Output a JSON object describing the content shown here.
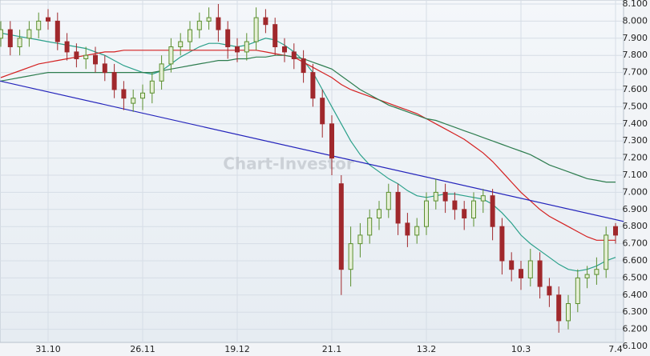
{
  "chart_data": {
    "type": "candlestick",
    "watermark": "Chart-Investor",
    "categories": [
      null,
      null,
      null,
      null,
      null,
      "31.10",
      null,
      null,
      null,
      null,
      null,
      null,
      null,
      null,
      null,
      "26.11",
      null,
      null,
      null,
      null,
      null,
      null,
      null,
      null,
      null,
      "19.12",
      null,
      null,
      null,
      null,
      null,
      null,
      null,
      null,
      null,
      "21.1",
      null,
      null,
      null,
      null,
      null,
      null,
      null,
      null,
      null,
      "13.2",
      null,
      null,
      null,
      null,
      null,
      null,
      null,
      null,
      null,
      "10.3",
      null,
      null,
      null,
      null,
      null,
      null,
      null,
      null,
      null,
      "7.4"
    ],
    "open": [
      7.9,
      7.95,
      7.85,
      7.9,
      7.95,
      8.02,
      8.0,
      7.88,
      7.82,
      7.78,
      7.8,
      7.75,
      7.7,
      7.6,
      7.52,
      7.55,
      7.58,
      7.65,
      7.75,
      7.85,
      7.88,
      7.95,
      8.0,
      8.02,
      7.95,
      7.85,
      7.82,
      7.88,
      8.02,
      7.98,
      7.85,
      7.82,
      7.78,
      7.7,
      7.55,
      7.4,
      7.05,
      6.55,
      6.7,
      6.75,
      6.85,
      6.9,
      7.0,
      6.82,
      6.75,
      6.8,
      6.95,
      7.0,
      6.95,
      6.9,
      6.85,
      6.95,
      6.98,
      6.8,
      6.6,
      6.55,
      6.5,
      6.6,
      6.45,
      6.4,
      6.25,
      6.35,
      6.5,
      6.52,
      6.55,
      6.8
    ],
    "high": [
      8.0,
      8.0,
      7.95,
      8.0,
      8.05,
      8.07,
      8.05,
      7.93,
      7.87,
      7.85,
      7.85,
      7.8,
      7.75,
      7.65,
      7.6,
      7.63,
      7.7,
      7.8,
      7.9,
      7.93,
      8.0,
      8.05,
      8.08,
      8.1,
      8.0,
      7.9,
      7.93,
      8.08,
      8.07,
      8.02,
      7.9,
      7.87,
      7.83,
      7.75,
      7.6,
      7.45,
      7.1,
      6.8,
      6.82,
      6.9,
      6.95,
      7.05,
      7.05,
      6.88,
      6.85,
      7.0,
      7.08,
      7.05,
      7.0,
      6.95,
      7.0,
      7.02,
      7.02,
      6.85,
      6.65,
      6.6,
      6.67,
      6.65,
      6.5,
      6.45,
      6.4,
      6.55,
      6.57,
      6.62,
      6.8,
      6.82
    ],
    "low": [
      7.85,
      7.8,
      7.8,
      7.85,
      7.9,
      7.95,
      7.83,
      7.77,
      7.73,
      7.72,
      7.7,
      7.65,
      7.55,
      7.48,
      7.47,
      7.48,
      7.52,
      7.6,
      7.7,
      7.8,
      7.83,
      7.9,
      7.95,
      7.88,
      7.78,
      7.76,
      7.77,
      7.83,
      7.93,
      7.8,
      7.76,
      7.72,
      7.64,
      7.5,
      7.32,
      7.1,
      6.4,
      6.45,
      6.62,
      6.7,
      6.78,
      6.85,
      6.75,
      6.68,
      6.7,
      6.75,
      6.9,
      6.88,
      6.84,
      6.78,
      6.8,
      6.88,
      6.72,
      6.52,
      6.48,
      6.43,
      6.45,
      6.38,
      6.33,
      6.18,
      6.2,
      6.3,
      6.44,
      6.46,
      6.5,
      6.7
    ],
    "close": [
      7.95,
      7.85,
      7.9,
      7.95,
      8.0,
      8.0,
      7.88,
      7.82,
      7.78,
      7.8,
      7.75,
      7.7,
      7.6,
      7.55,
      7.55,
      7.58,
      7.65,
      7.75,
      7.85,
      7.88,
      7.95,
      8.0,
      8.02,
      7.95,
      7.85,
      7.82,
      7.88,
      8.02,
      7.98,
      7.85,
      7.82,
      7.78,
      7.7,
      7.55,
      7.4,
      7.2,
      6.55,
      6.7,
      6.75,
      6.85,
      6.9,
      7.0,
      6.82,
      6.75,
      6.8,
      6.95,
      7.0,
      6.95,
      6.9,
      6.85,
      6.95,
      6.98,
      6.8,
      6.6,
      6.55,
      6.5,
      6.6,
      6.45,
      6.4,
      6.25,
      6.35,
      6.5,
      6.52,
      6.55,
      6.75,
      6.75
    ],
    "up_color": "#5a8f2e",
    "up_fill": "#e6efd6",
    "down_color": "#a0282c",
    "lines": [
      {
        "color": "#2aa08a",
        "values": [
          7.93,
          7.92,
          7.91,
          7.9,
          7.89,
          7.88,
          7.87,
          7.86,
          7.85,
          7.84,
          7.82,
          7.8,
          7.77,
          7.74,
          7.72,
          7.7,
          7.69,
          7.71,
          7.75,
          7.79,
          7.82,
          7.85,
          7.87,
          7.87,
          7.86,
          7.85,
          7.86,
          7.88,
          7.9,
          7.89,
          7.86,
          7.82,
          7.77,
          7.7,
          7.6,
          7.5,
          7.4,
          7.3,
          7.22,
          7.16,
          7.12,
          7.08,
          7.05,
          7.01,
          6.98,
          6.97,
          6.98,
          6.99,
          6.99,
          6.98,
          6.97,
          6.96,
          6.93,
          6.88,
          6.82,
          6.75,
          6.7,
          6.66,
          6.62,
          6.58,
          6.55,
          6.54,
          6.55,
          6.57,
          6.6,
          6.62
        ]
      },
      {
        "color": "#d42020",
        "values": [
          7.67,
          7.69,
          7.71,
          7.73,
          7.75,
          7.76,
          7.77,
          7.78,
          7.79,
          7.8,
          7.81,
          7.82,
          7.82,
          7.83,
          7.83,
          7.83,
          7.83,
          7.83,
          7.83,
          7.83,
          7.83,
          7.83,
          7.83,
          7.83,
          7.83,
          7.83,
          7.83,
          7.83,
          7.82,
          7.81,
          7.8,
          7.79,
          7.76,
          7.73,
          7.7,
          7.67,
          7.63,
          7.6,
          7.58,
          7.56,
          7.54,
          7.52,
          7.5,
          7.48,
          7.46,
          7.43,
          7.4,
          7.37,
          7.34,
          7.31,
          7.27,
          7.23,
          7.18,
          7.12,
          7.06,
          7.0,
          6.95,
          6.9,
          6.86,
          6.83,
          6.8,
          6.77,
          6.74,
          6.72,
          6.72,
          6.72
        ]
      },
      {
        "color": "#2e7d4f",
        "values": [
          7.65,
          7.66,
          7.67,
          7.68,
          7.69,
          7.7,
          7.7,
          7.7,
          7.7,
          7.7,
          7.7,
          7.7,
          7.7,
          7.7,
          7.7,
          7.7,
          7.7,
          7.71,
          7.72,
          7.73,
          7.74,
          7.75,
          7.76,
          7.77,
          7.77,
          7.78,
          7.78,
          7.79,
          7.79,
          7.8,
          7.8,
          7.79,
          7.78,
          7.76,
          7.74,
          7.72,
          7.68,
          7.64,
          7.6,
          7.57,
          7.54,
          7.51,
          7.49,
          7.47,
          7.45,
          7.43,
          7.42,
          7.4,
          7.38,
          7.36,
          7.34,
          7.32,
          7.3,
          7.28,
          7.26,
          7.24,
          7.22,
          7.19,
          7.16,
          7.14,
          7.12,
          7.1,
          7.08,
          7.07,
          7.06,
          7.06
        ]
      }
    ],
    "trend_line": {
      "color": "#2222bb",
      "values": [
        7.65,
        6.83
      ]
    },
    "ylim": [
      6.1,
      8.1
    ],
    "yticks": [
      {
        "value": 6.1,
        "label": "6.100"
      },
      {
        "value": 6.2,
        "label": "6.200"
      },
      {
        "value": 6.3,
        "label": "6.300"
      },
      {
        "value": 6.4,
        "label": "6.400"
      },
      {
        "value": 6.5,
        "label": "6.500"
      },
      {
        "value": 6.6,
        "label": "6.600"
      },
      {
        "value": 6.7,
        "label": "6.700"
      },
      {
        "value": 6.8,
        "label": "6.800"
      },
      {
        "value": 6.9,
        "label": "6.900"
      },
      {
        "value": 7.0,
        "label": "7.000"
      },
      {
        "value": 7.1,
        "label": "7.100"
      },
      {
        "value": 7.2,
        "label": "7.200"
      },
      {
        "value": 7.3,
        "label": "7.300"
      },
      {
        "value": 7.4,
        "label": "7.400"
      },
      {
        "value": 7.5,
        "label": "7.500"
      },
      {
        "value": 7.6,
        "label": "7.600"
      },
      {
        "value": 7.7,
        "label": "7.700"
      },
      {
        "value": 7.8,
        "label": "7.800"
      },
      {
        "value": 7.9,
        "label": "7.900"
      },
      {
        "value": 8.0,
        "label": "8.000"
      },
      {
        "value": 8.1,
        "label": "8.100"
      }
    ],
    "grid": true
  }
}
